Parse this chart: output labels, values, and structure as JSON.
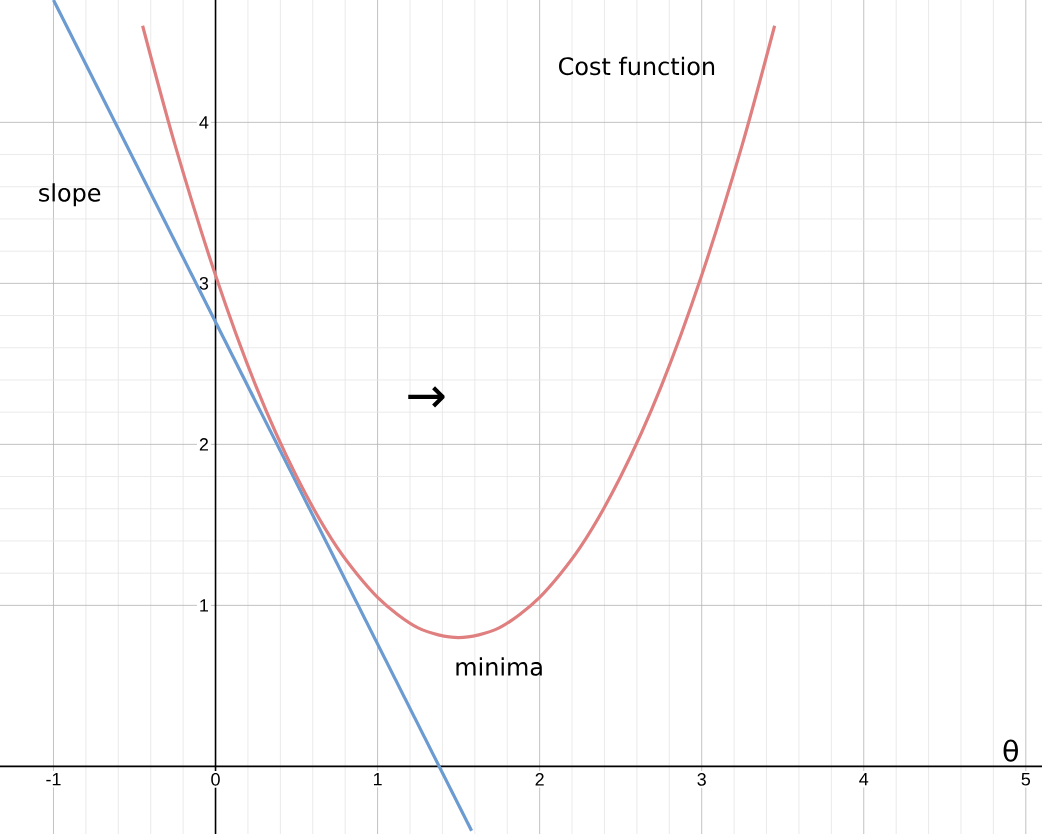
{
  "chart_data": {
    "type": "line",
    "xlabel": "θ",
    "xlim": [
      -1.33,
      5.1
    ],
    "ylim": [
      -0.42,
      4.76
    ],
    "xticks": [
      -1,
      0,
      1,
      2,
      3,
      4,
      5
    ],
    "yticks": [
      1,
      2,
      3,
      4
    ],
    "grid": true,
    "series": [
      {
        "color": "#6b9bd1",
        "x": [
          -1,
          1.58
        ],
        "values": [
          4.76,
          -0.4
        ]
      },
      {
        "color": "#e07f7f",
        "x": [
          -0.45,
          -0.25,
          0,
          0.25,
          0.5,
          0.75,
          1,
          1.25,
          1.5,
          1.75,
          2,
          2.25,
          2.5,
          2.75,
          3,
          3.25,
          3.45
        ],
        "values": [
          4.6,
          3.86,
          3.05,
          2.36,
          1.8,
          1.36,
          1.05,
          0.86,
          0.8,
          0.86,
          1.05,
          1.36,
          1.8,
          2.36,
          3.05,
          3.86,
          4.6
        ]
      }
    ],
    "annotations": [
      "slope",
      "Cost function",
      "minima",
      "→"
    ]
  }
}
